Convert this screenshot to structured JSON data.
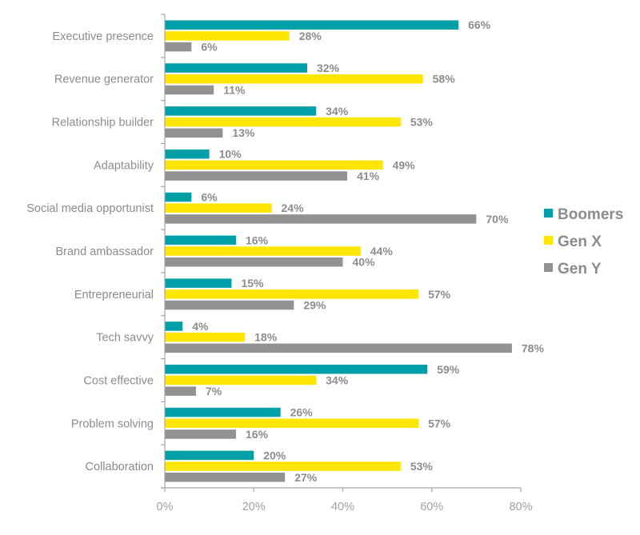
{
  "chart_data": {
    "type": "bar",
    "orientation": "horizontal",
    "title": "",
    "xlabel": "",
    "ylabel": "",
    "xlim": [
      0,
      80
    ],
    "x_ticks": [
      0,
      20,
      40,
      60,
      80
    ],
    "x_tick_labels": [
      "0%",
      "20%",
      "40%",
      "60%",
      "80%"
    ],
    "grid": false,
    "legend_position": "right",
    "categories": [
      "Executive presence",
      "Revenue generator",
      "Relationship builder",
      "Adaptability",
      "Social media opportunist",
      "Brand ambassador",
      "Entrepreneurial",
      "Tech savvy",
      "Cost effective",
      "Problem solving",
      "Collaboration"
    ],
    "series": [
      {
        "name": "Boomers",
        "color": "#00a0a8",
        "values": [
          66,
          32,
          34,
          10,
          6,
          16,
          15,
          4,
          59,
          26,
          20
        ]
      },
      {
        "name": "Gen X",
        "color": "#ffe600",
        "values": [
          28,
          58,
          53,
          49,
          24,
          44,
          57,
          18,
          34,
          57,
          53
        ]
      },
      {
        "name": "Gen Y",
        "color": "#929292",
        "values": [
          6,
          11,
          13,
          41,
          70,
          40,
          29,
          78,
          7,
          16,
          27
        ]
      }
    ],
    "value_label_suffix": "%"
  },
  "colors": {
    "axis": "#a6a6a6",
    "text": "#8c8c8c"
  }
}
